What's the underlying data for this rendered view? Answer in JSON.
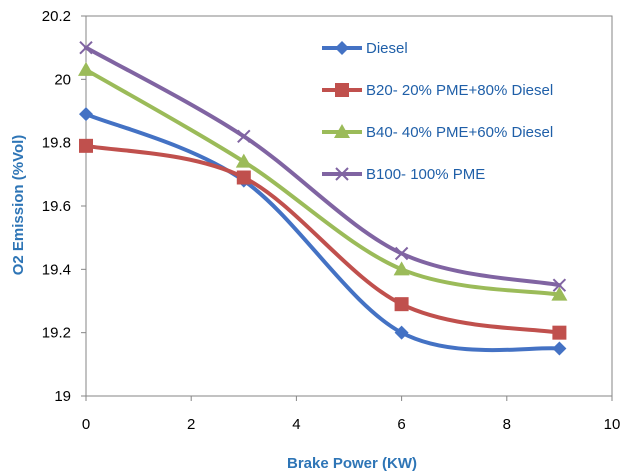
{
  "chart_data": {
    "type": "line",
    "title": "",
    "xlabel": "Brake Power (KW)",
    "ylabel": "O2 Emission  (%Vol)",
    "xlim": [
      0,
      10
    ],
    "ylim": [
      19,
      20.2
    ],
    "x_ticks": [
      "0",
      "2",
      "4",
      "6",
      "8",
      "10"
    ],
    "y_ticks": [
      "19",
      "19.2",
      "19.4",
      "19.6",
      "19.8",
      "20",
      "20.2"
    ],
    "grid": false,
    "legend_position": "top-right",
    "x": [
      0,
      3,
      6,
      9
    ],
    "series": [
      {
        "name": "Diesel",
        "values": [
          19.89,
          19.68,
          19.2,
          19.15
        ],
        "color": "#4472c4",
        "marker": "diamond"
      },
      {
        "name": "B20- 20% PME+80% Diesel",
        "values": [
          19.79,
          19.69,
          19.29,
          19.2
        ],
        "color": "#c0504d",
        "marker": "square"
      },
      {
        "name": "B40- 40% PME+60% Diesel",
        "values": [
          20.03,
          19.74,
          19.4,
          19.32
        ],
        "color": "#9bbb59",
        "marker": "triangle"
      },
      {
        "name": "B100- 100% PME",
        "values": [
          20.1,
          19.82,
          19.45,
          19.35
        ],
        "color": "#8064a2",
        "marker": "x"
      }
    ]
  }
}
